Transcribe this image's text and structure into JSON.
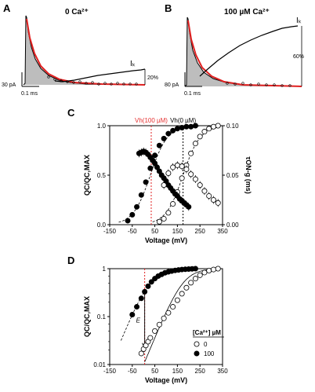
{
  "panels": {
    "A": {
      "letter": "A",
      "title": "0 Ca²⁺",
      "ik": "Iₖ",
      "pct": "20%",
      "scale_y": "30 pA",
      "scale_x": "0.1 ms"
    },
    "B": {
      "letter": "B",
      "title": "100 µM Ca²⁺",
      "ik": "Iₖ",
      "pct": "60%",
      "scale_y": "80 pA",
      "scale_x": "0.1 ms"
    },
    "C": {
      "letter": "C"
    },
    "D": {
      "letter": "D"
    }
  },
  "chart_data": [
    {
      "id": "C",
      "type": "scatter",
      "xlabel": "Voltage (mV)",
      "ylabel": "QC/QC,MAX",
      "ylabel_right": "τON-g (ms)",
      "xlim": [
        -150,
        350
      ],
      "ylim": [
        0,
        1.0
      ],
      "ylim_right": [
        0,
        0.1
      ],
      "xticks": [
        "-150",
        "-50",
        "50",
        "150",
        "250",
        "350"
      ],
      "yticks": [
        "0.0",
        "0.5",
        "1.0"
      ],
      "yticks_right": [
        "0.00",
        "0.05",
        "0.10"
      ],
      "annotations": {
        "v_red": "Vh(100 µM)",
        "v_black": "Vh(0 µM)",
        "v_red_x": 34,
        "v_black_x": 175
      },
      "series": [
        {
          "marker": "filled",
          "axis": "left",
          "x": [
            -70,
            -50,
            -30,
            -10,
            10,
            30,
            50,
            70,
            90,
            110,
            130,
            150,
            170,
            190,
            210,
            230
          ],
          "y": [
            0.04,
            0.1,
            0.18,
            0.3,
            0.43,
            0.57,
            0.7,
            0.8,
            0.87,
            0.92,
            0.95,
            0.97,
            0.98,
            0.99,
            0.99,
            1.0
          ]
        },
        {
          "marker": "open",
          "axis": "left",
          "x": [
            70,
            90,
            110,
            130,
            150,
            170,
            190,
            210,
            230,
            250,
            270,
            290,
            310,
            330
          ],
          "y": [
            0.03,
            0.06,
            0.12,
            0.21,
            0.33,
            0.47,
            0.6,
            0.72,
            0.82,
            0.89,
            0.94,
            0.97,
            0.99,
            1.0
          ]
        },
        {
          "marker": "filled",
          "axis": "right",
          "x": [
            -20,
            -10,
            0,
            10,
            20,
            30,
            40,
            50,
            60,
            70,
            80,
            90,
            100,
            110,
            120,
            130,
            140,
            150,
            160,
            170,
            180,
            190,
            200
          ],
          "y": [
            0.072,
            0.073,
            0.074,
            0.073,
            0.071,
            0.068,
            0.065,
            0.062,
            0.058,
            0.054,
            0.05,
            0.047,
            0.044,
            0.04,
            0.037,
            0.034,
            0.031,
            0.029,
            0.026,
            0.024,
            0.022,
            0.02,
            0.018
          ]
        },
        {
          "marker": "open",
          "axis": "right",
          "x": [
            90,
            110,
            130,
            150,
            170,
            190,
            210,
            230,
            250,
            270,
            290,
            310,
            330
          ],
          "y": [
            0.04,
            0.052,
            0.058,
            0.06,
            0.059,
            0.056,
            0.051,
            0.046,
            0.04,
            0.034,
            0.029,
            0.025,
            0.022
          ]
        }
      ]
    },
    {
      "id": "D",
      "type": "scatter",
      "xlabel": "Voltage (mV)",
      "ylabel": "QC/QC,MAX",
      "xlim": [
        -150,
        350
      ],
      "ylim": [
        0.01,
        1
      ],
      "log_y": true,
      "xticks": [
        "-150",
        "-50",
        "50",
        "150",
        "250",
        "350"
      ],
      "yticks": [
        "0.01",
        "0.1",
        "1"
      ],
      "annotations": {
        "letter_e": "E",
        "v_red_x": 5
      },
      "legend": {
        "title": "[Ca²⁺] µM",
        "entries": [
          "0",
          "100"
        ],
        "position": "bottom-right"
      },
      "series": [
        {
          "name": "100",
          "marker": "filled",
          "x": [
            -50,
            -30,
            -10,
            5,
            20,
            35,
            50,
            65,
            80,
            95,
            110,
            125,
            140,
            155,
            170,
            185,
            200,
            215,
            230
          ],
          "y": [
            0.11,
            0.16,
            0.24,
            0.33,
            0.43,
            0.53,
            0.62,
            0.7,
            0.76,
            0.82,
            0.86,
            0.89,
            0.92,
            0.94,
            0.96,
            0.97,
            0.98,
            0.99,
            1.0
          ]
        },
        {
          "name": "0",
          "marker": "open",
          "x": [
            -10,
            0,
            10,
            20,
            30,
            50,
            70,
            90,
            110,
            130,
            150,
            170,
            190,
            210,
            230,
            250,
            270,
            290,
            310,
            330
          ],
          "y": [
            0.017,
            0.021,
            0.025,
            0.03,
            0.036,
            0.05,
            0.068,
            0.092,
            0.12,
            0.16,
            0.22,
            0.3,
            0.4,
            0.51,
            0.62,
            0.73,
            0.83,
            0.91,
            0.96,
            1.0
          ]
        }
      ]
    }
  ]
}
